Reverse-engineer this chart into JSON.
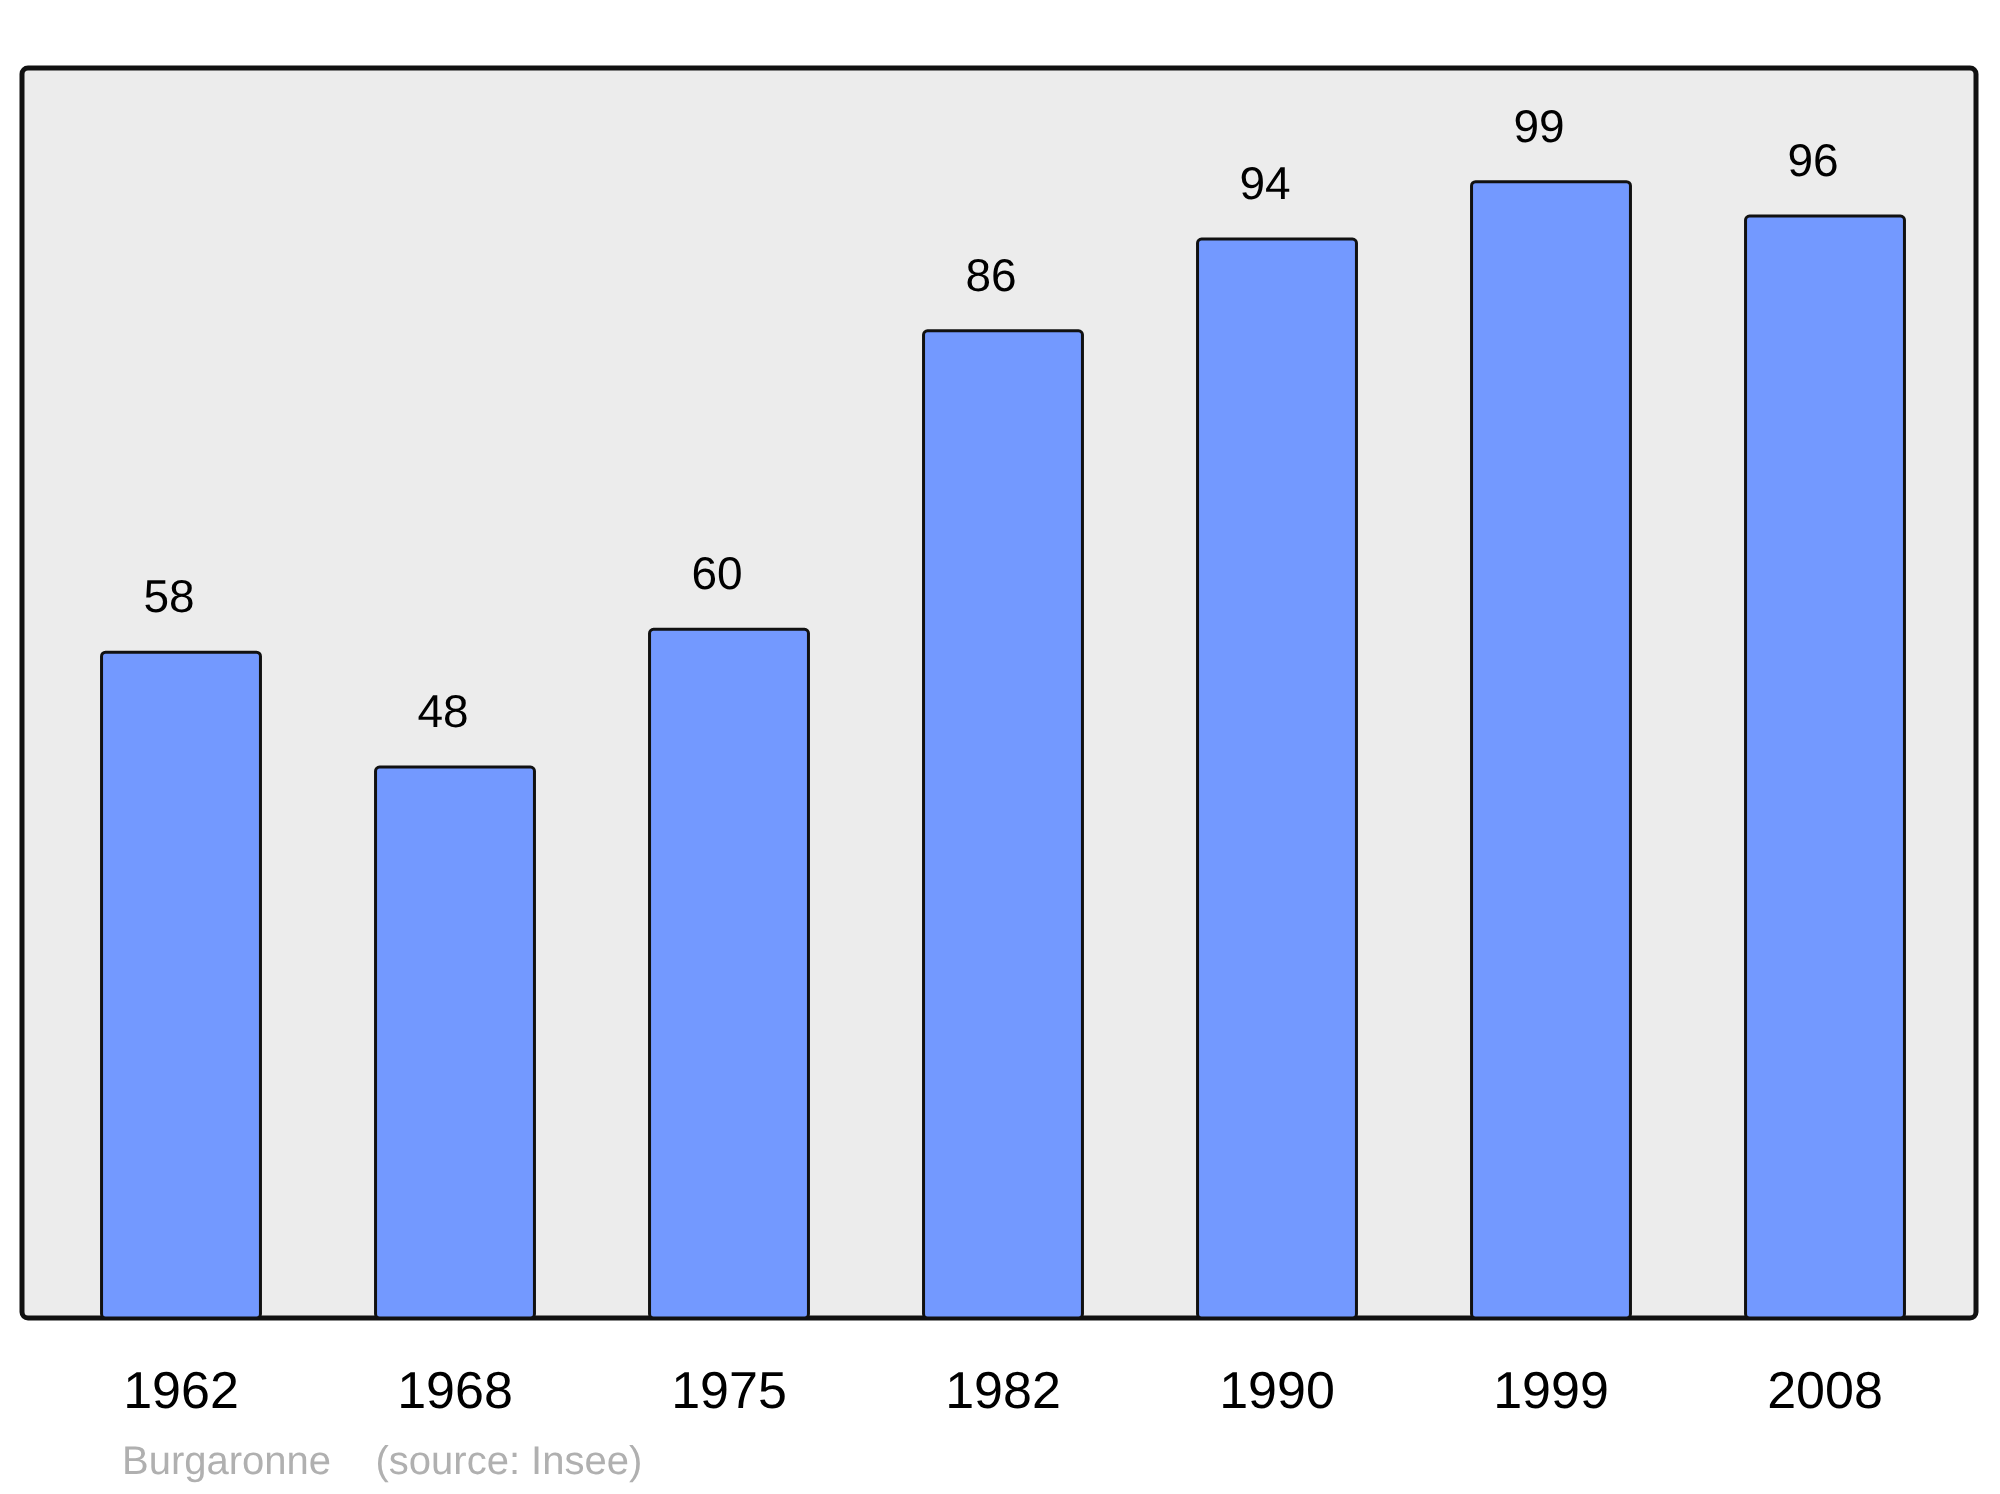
{
  "chart_data": {
    "type": "bar",
    "categories": [
      "1962",
      "1968",
      "1975",
      "1982",
      "1990",
      "1999",
      "2008"
    ],
    "values": [
      58,
      48,
      60,
      86,
      94,
      99,
      96
    ],
    "color": "#7399ff",
    "data_labels": true,
    "annotations": [
      "Burgaronne    (source: Insee)"
    ]
  }
}
